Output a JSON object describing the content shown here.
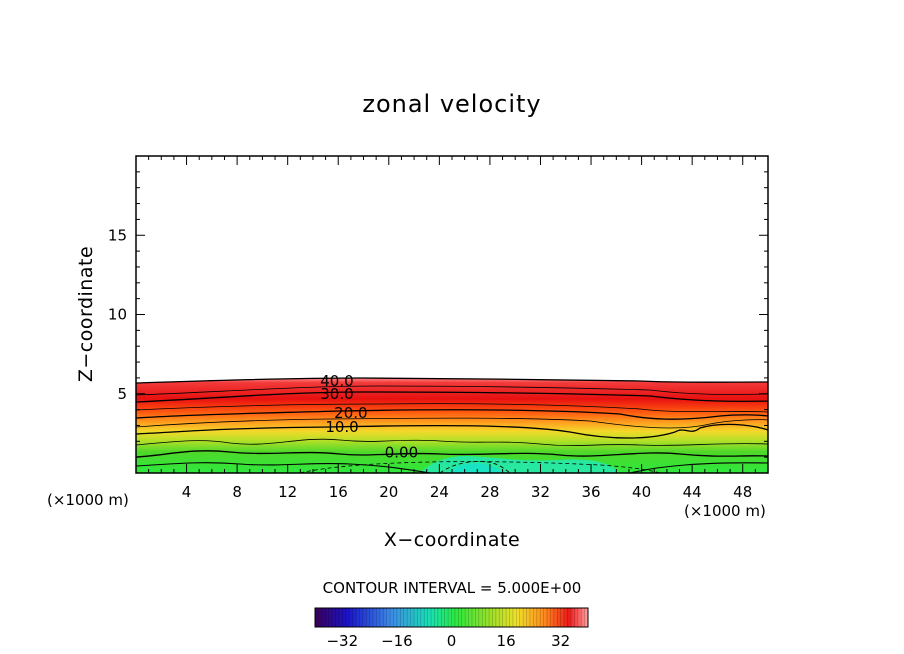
{
  "chart_data": {
    "type": "contour",
    "title": "zonal velocity",
    "xlabel": "X−coordinate",
    "ylabel": "Z−coordinate",
    "x_unit_left": "(×1000 m)",
    "x_unit_right": "(×1000 m)",
    "xlim": [
      0,
      50
    ],
    "ylim": [
      0,
      20
    ],
    "x_ticks": [
      "4",
      "8",
      "12",
      "16",
      "20",
      "24",
      "28",
      "32",
      "36",
      "40",
      "44",
      "48"
    ],
    "x_tick_values": [
      4,
      8,
      12,
      16,
      20,
      24,
      28,
      32,
      36,
      40,
      44,
      48
    ],
    "y_ticks": [
      "5",
      "10",
      "15"
    ],
    "y_tick_values": [
      5,
      10,
      15
    ],
    "contour_labels": [
      {
        "text": "40.0",
        "x": 15.9,
        "y": 5.8
      },
      {
        "text": "30.0",
        "x": 15.9,
        "y": 5.0
      },
      {
        "text": "20.0",
        "x": 17.0,
        "y": 3.8
      },
      {
        "text": "10.0",
        "x": 16.3,
        "y": 2.9
      },
      {
        "text": "0.00",
        "x": 21.0,
        "y": 1.3
      }
    ],
    "contour_interval_text": "CONTOUR INTERVAL = 5.000E+00",
    "colorbar": {
      "range": [
        -40,
        40
      ],
      "ticks": [
        "−32",
        "−16",
        "0",
        "16",
        "32"
      ],
      "tick_values": [
        -32,
        -16,
        0,
        16,
        32
      ]
    }
  }
}
